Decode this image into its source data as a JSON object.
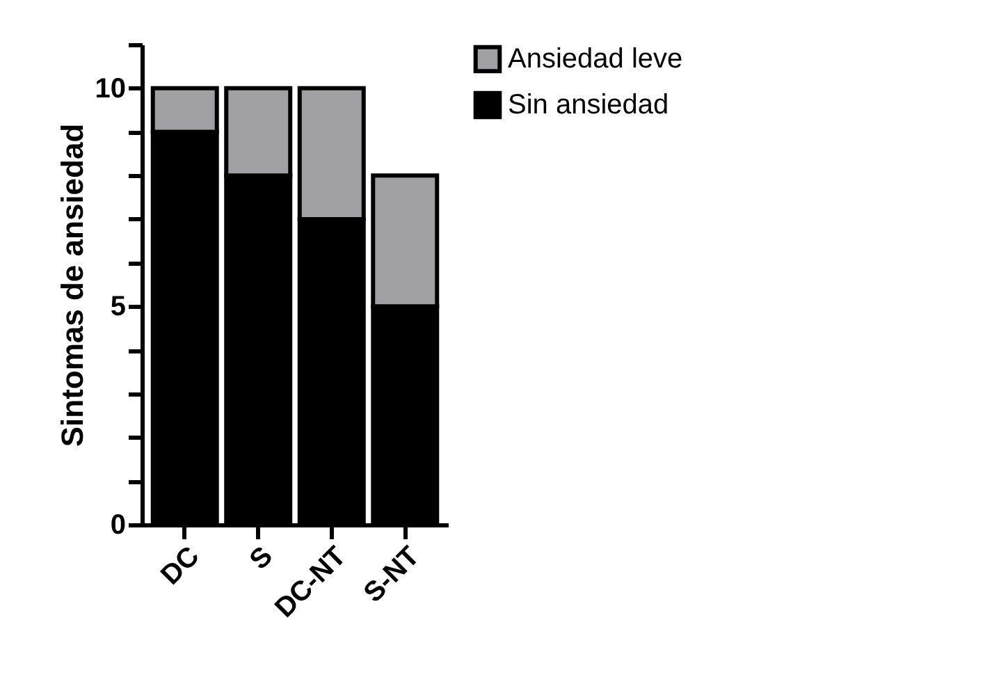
{
  "chart_data": {
    "type": "bar",
    "stacked": true,
    "ylabel": "Sintomas de ansiedad",
    "categories": [
      "DC",
      "S",
      "DC-NT",
      "S-NT"
    ],
    "series": [
      {
        "name": "Sin ansiedad",
        "color": "#000000",
        "values": [
          9,
          8,
          7,
          5
        ]
      },
      {
        "name": "Ansiedad leve",
        "color": "#a0a0a4",
        "values": [
          1,
          2,
          3,
          3
        ]
      }
    ],
    "ylim": [
      0,
      11
    ],
    "yticks": [
      0,
      {
        "value": 1,
        "label": null
      },
      {
        "value": 2,
        "label": null
      },
      {
        "value": 3,
        "label": null
      },
      {
        "value": 4,
        "label": null
      },
      5,
      {
        "value": 6,
        "label": null
      },
      {
        "value": 7,
        "label": null
      },
      {
        "value": 8,
        "label": null
      },
      {
        "value": 9,
        "label": null
      },
      10,
      {
        "value": 11,
        "label": null
      }
    ],
    "grid": false,
    "legend": "top right"
  }
}
